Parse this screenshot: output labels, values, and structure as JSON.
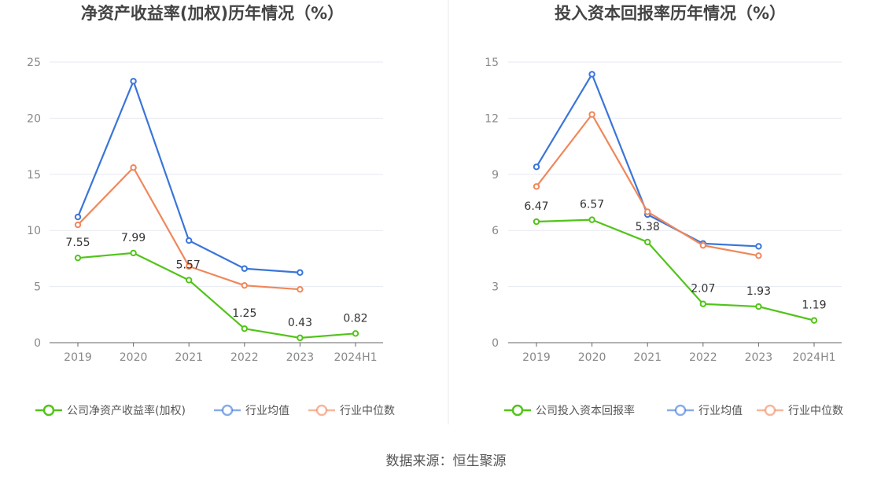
{
  "footer": {
    "source": "数据来源：恒生聚源"
  },
  "chart_data": [
    {
      "type": "line",
      "title": "净资产收益率(加权)历年情况（%）",
      "categories": [
        "2019",
        "2020",
        "2021",
        "2022",
        "2023",
        "2024H1"
      ],
      "ylim": [
        0,
        25
      ],
      "yticks": [
        0,
        5,
        10,
        15,
        20,
        25
      ],
      "grid": true,
      "legend_position": "bottom",
      "series": [
        {
          "name": "公司净资产收益率(加权)",
          "color": "#52c41a",
          "values": [
            7.55,
            7.99,
            5.57,
            1.25,
            0.43,
            0.82
          ],
          "labels": [
            "7.55",
            "7.99",
            "5.57",
            "1.25",
            "0.43",
            "0.82"
          ]
        },
        {
          "name": "行业均值",
          "color": "#3a75d9",
          "values": [
            11.2,
            23.3,
            9.1,
            6.6,
            6.25,
            null
          ]
        },
        {
          "name": "行业中位数",
          "color": "#f0875a",
          "values": [
            10.5,
            15.6,
            6.8,
            5.1,
            4.75,
            null
          ]
        }
      ]
    },
    {
      "type": "line",
      "title": "投入资本回报率历年情况（%）",
      "categories": [
        "2019",
        "2020",
        "2021",
        "2022",
        "2023",
        "2024H1"
      ],
      "ylim": [
        0,
        15
      ],
      "yticks": [
        0,
        3,
        6,
        9,
        12,
        15
      ],
      "grid": true,
      "legend_position": "bottom",
      "series": [
        {
          "name": "公司投入资本回报率",
          "color": "#52c41a",
          "values": [
            6.47,
            6.57,
            5.38,
            2.07,
            1.93,
            1.19
          ],
          "labels": [
            "6.47",
            "6.57",
            "5.38",
            "2.07",
            "1.93",
            "1.19"
          ]
        },
        {
          "name": "行业均值",
          "color": "#3a75d9",
          "values": [
            9.4,
            14.35,
            6.85,
            5.3,
            5.15,
            null
          ]
        },
        {
          "name": "行业中位数",
          "color": "#f0875a",
          "values": [
            8.35,
            12.2,
            7.0,
            5.2,
            4.65,
            null
          ]
        }
      ]
    }
  ]
}
